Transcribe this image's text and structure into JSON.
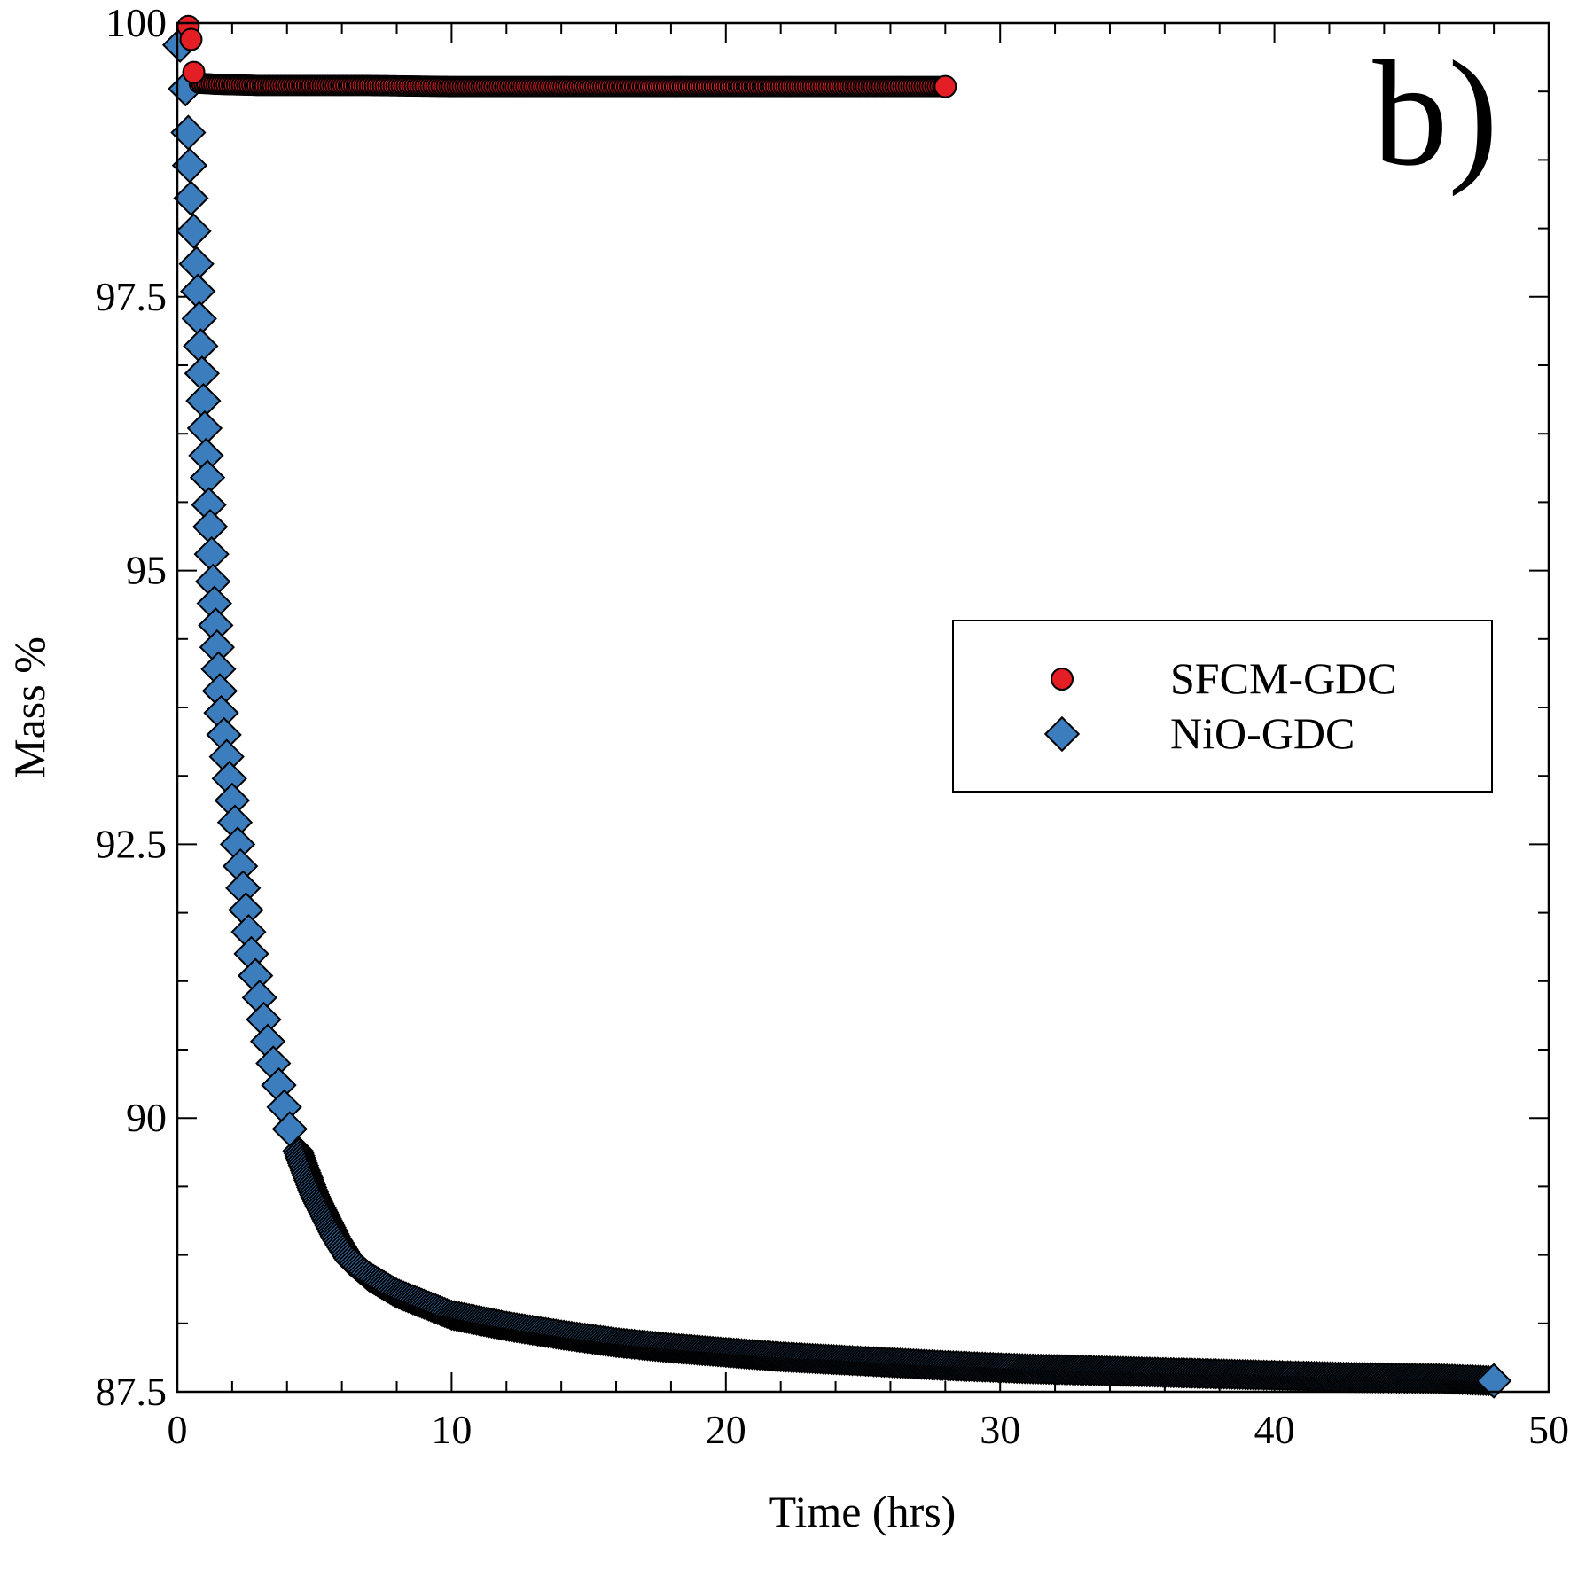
{
  "chart_data": {
    "type": "scatter",
    "panel_label": "b)",
    "xlabel": "Time (hrs)",
    "ylabel": "Mass %",
    "xlim": [
      0,
      50
    ],
    "ylim": [
      87.5,
      100
    ],
    "xticks": [
      0,
      10,
      20,
      30,
      40,
      50
    ],
    "yticks": [
      87.5,
      90,
      92.5,
      95,
      97.5,
      100
    ],
    "xtick_labels": [
      "0",
      "10",
      "20",
      "30",
      "40",
      "50"
    ],
    "ytick_labels": [
      "87.5",
      "90",
      "92.5",
      "95",
      "97.5",
      "100"
    ],
    "grid": false,
    "legend_position": "center-right",
    "series": [
      {
        "name": "SFCM-GDC",
        "marker": "circle",
        "color": "#e31e24",
        "points": [
          [
            0.4,
            99.97
          ],
          [
            0.5,
            99.85
          ],
          [
            0.6,
            99.55
          ],
          [
            0.8,
            99.45
          ],
          [
            1.5,
            99.44
          ],
          [
            3,
            99.43
          ],
          [
            5,
            99.43
          ],
          [
            7,
            99.43
          ],
          [
            10,
            99.42
          ],
          [
            13,
            99.42
          ],
          [
            16,
            99.42
          ],
          [
            19,
            99.42
          ],
          [
            22,
            99.42
          ],
          [
            25,
            99.42
          ],
          [
            28,
            99.42
          ]
        ]
      },
      {
        "name": "NiO-GDC",
        "marker": "diamond",
        "color": "#3b7dbd",
        "points": [
          [
            0.1,
            99.8
          ],
          [
            0.3,
            99.4
          ],
          [
            0.4,
            99.0
          ],
          [
            0.45,
            98.7
          ],
          [
            0.5,
            98.4
          ],
          [
            0.6,
            98.1
          ],
          [
            0.7,
            97.8
          ],
          [
            0.75,
            97.55
          ],
          [
            0.8,
            97.3
          ],
          [
            0.85,
            97.05
          ],
          [
            0.9,
            96.8
          ],
          [
            0.95,
            96.55
          ],
          [
            1.0,
            96.3
          ],
          [
            1.05,
            96.05
          ],
          [
            1.1,
            95.85
          ],
          [
            1.15,
            95.6
          ],
          [
            1.2,
            95.4
          ],
          [
            1.25,
            95.15
          ],
          [
            1.3,
            94.9
          ],
          [
            1.35,
            94.7
          ],
          [
            1.4,
            94.5
          ],
          [
            1.45,
            94.3
          ],
          [
            1.5,
            94.1
          ],
          [
            1.55,
            93.9
          ],
          [
            1.6,
            93.7
          ],
          [
            1.7,
            93.5
          ],
          [
            1.8,
            93.3
          ],
          [
            1.9,
            93.1
          ],
          [
            2.0,
            92.9
          ],
          [
            2.1,
            92.7
          ],
          [
            2.2,
            92.5
          ],
          [
            2.3,
            92.3
          ],
          [
            2.4,
            92.1
          ],
          [
            2.5,
            91.9
          ],
          [
            2.6,
            91.7
          ],
          [
            2.7,
            91.5
          ],
          [
            2.85,
            91.3
          ],
          [
            3.0,
            91.1
          ],
          [
            3.15,
            90.9
          ],
          [
            3.3,
            90.7
          ],
          [
            3.5,
            90.5
          ],
          [
            3.7,
            90.3
          ],
          [
            3.9,
            90.1
          ],
          [
            4.1,
            89.9
          ],
          [
            4.4,
            89.7
          ],
          [
            4.7,
            89.5
          ],
          [
            5.0,
            89.3
          ],
          [
            5.4,
            89.1
          ],
          [
            5.8,
            88.9
          ],
          [
            6.3,
            88.7
          ],
          [
            7.0,
            88.55
          ],
          [
            8.0,
            88.4
          ],
          [
            9.0,
            88.3
          ],
          [
            10,
            88.2
          ],
          [
            12,
            88.1
          ],
          [
            14,
            88.02
          ],
          [
            16,
            87.95
          ],
          [
            18,
            87.9
          ],
          [
            20,
            87.86
          ],
          [
            22,
            87.82
          ],
          [
            25,
            87.78
          ],
          [
            28,
            87.74
          ],
          [
            31,
            87.71
          ],
          [
            34,
            87.69
          ],
          [
            37,
            87.67
          ],
          [
            40,
            87.65
          ],
          [
            43,
            87.63
          ],
          [
            46,
            87.62
          ],
          [
            48,
            87.6
          ]
        ]
      }
    ]
  }
}
